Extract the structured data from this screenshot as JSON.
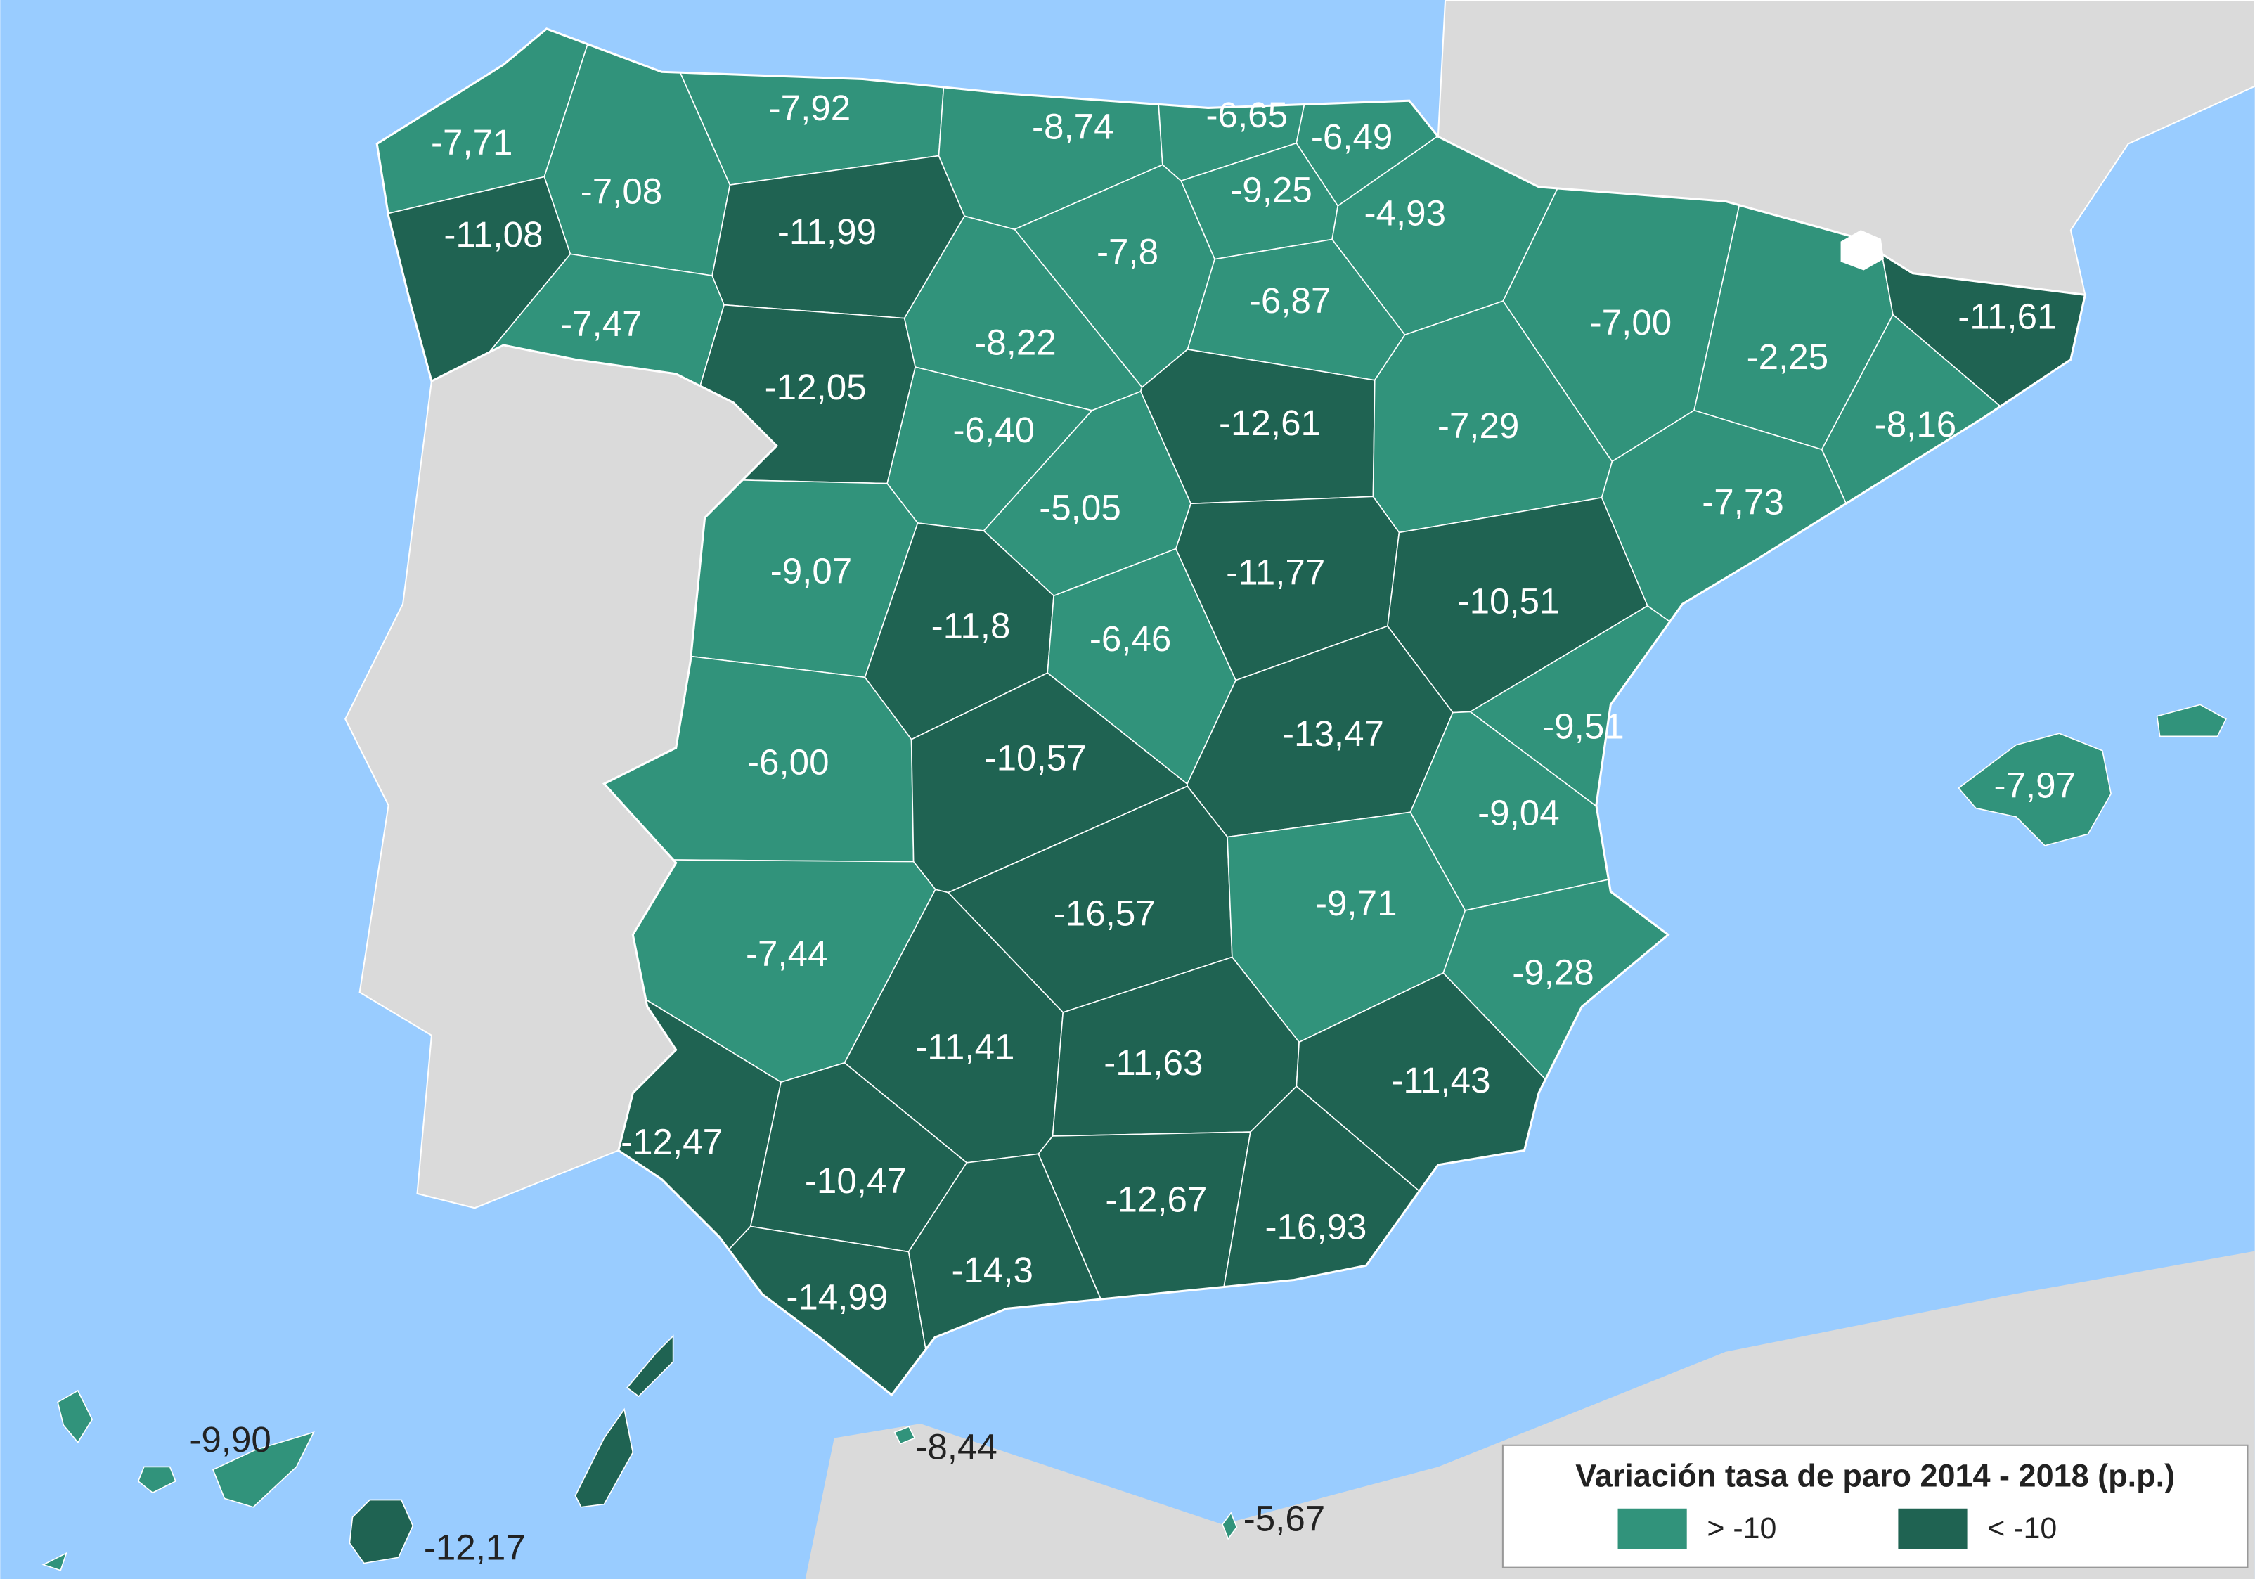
{
  "legend": {
    "title": "Variación tasa de paro 2014 - 2018 (p.p.)",
    "items": [
      {
        "label": "> -10",
        "color": "#31937b"
      },
      {
        "label": "< -10",
        "color": "#1f6352"
      }
    ]
  },
  "provinces": [
    {
      "label": "-7,71",
      "legend_item": 0
    },
    {
      "label": "-7,08",
      "legend_item": 0
    },
    {
      "label": "-11,08",
      "legend_item": 1
    },
    {
      "label": "-7,47",
      "legend_item": 0
    },
    {
      "label": "-7,92",
      "legend_item": 0
    },
    {
      "label": "-11,99",
      "legend_item": 1
    },
    {
      "label": "-12,05",
      "legend_item": 1
    },
    {
      "label": "-8,74",
      "legend_item": 0
    },
    {
      "label": "-6,65",
      "legend_item": 0
    },
    {
      "label": "-6,49",
      "legend_item": 0
    },
    {
      "label": "-9,25",
      "legend_item": 0
    },
    {
      "label": "-4,93",
      "legend_item": 0
    },
    {
      "label": "-7,8",
      "legend_item": 0
    },
    {
      "label": "-6,87",
      "legend_item": 0
    },
    {
      "label": "-8,22",
      "legend_item": 0
    },
    {
      "label": "-6,40",
      "legend_item": 0
    },
    {
      "label": "-12,61",
      "legend_item": 1
    },
    {
      "label": "-7,29",
      "legend_item": 0
    },
    {
      "label": "-7,00",
      "legend_item": 0
    },
    {
      "label": "-2,25",
      "legend_item": 0
    },
    {
      "label": "-11,61",
      "legend_item": 1
    },
    {
      "label": "-8,16",
      "legend_item": 0
    },
    {
      "label": "-7,73",
      "legend_item": 0
    },
    {
      "label": "-5,05",
      "legend_item": 0
    },
    {
      "label": "-9,07",
      "legend_item": 0
    },
    {
      "label": "-11,8",
      "legend_item": 1
    },
    {
      "label": "-6,46",
      "legend_item": 0
    },
    {
      "label": "-11,77",
      "legend_item": 1
    },
    {
      "label": "-10,51",
      "legend_item": 1
    },
    {
      "label": "-9,51",
      "legend_item": 0
    },
    {
      "label": "-6,00",
      "legend_item": 0
    },
    {
      "label": "-10,57",
      "legend_item": 1
    },
    {
      "label": "-13,47",
      "legend_item": 1
    },
    {
      "label": "-9,04",
      "legend_item": 0
    },
    {
      "label": "-16,57",
      "legend_item": 1
    },
    {
      "label": "-9,71",
      "legend_item": 0
    },
    {
      "label": "-9,28",
      "legend_item": 0
    },
    {
      "label": "-7,44",
      "legend_item": 0
    },
    {
      "label": "-11,41",
      "legend_item": 1
    },
    {
      "label": "-11,63",
      "legend_item": 1
    },
    {
      "label": "-11,43",
      "legend_item": 1
    },
    {
      "label": "-12,47",
      "legend_item": 1
    },
    {
      "label": "-10,47",
      "legend_item": 1
    },
    {
      "label": "-12,67",
      "legend_item": 1
    },
    {
      "label": "-16,93",
      "legend_item": 1
    },
    {
      "label": "-14,99",
      "legend_item": 1
    },
    {
      "label": "-14,3",
      "legend_item": 1
    }
  ],
  "islands": [
    {
      "label": "-7,97",
      "legend_item": 0
    },
    {
      "label": "-9,90",
      "legend_item": 0
    },
    {
      "label": "-12,17",
      "legend_item": 1
    },
    {
      "label": "-8,44",
      "legend_item": 0
    },
    {
      "label": "-5,67",
      "legend_item": 0
    }
  ]
}
